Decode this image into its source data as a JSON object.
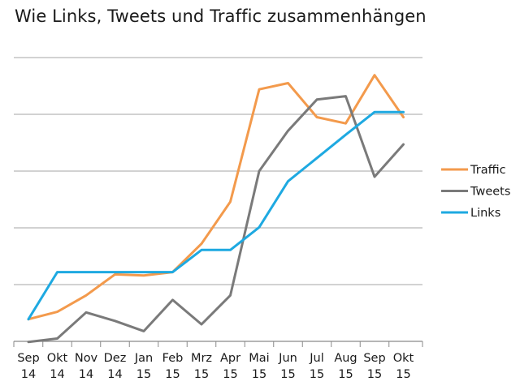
{
  "chart_data": {
    "type": "line",
    "title": "Wie Links, Tweets und Traffic zusammenhängen",
    "categories": [
      [
        "Sep",
        "14"
      ],
      [
        "Okt",
        "14"
      ],
      [
        "Nov",
        "14"
      ],
      [
        "Dez",
        "14"
      ],
      [
        "Jan",
        "15"
      ],
      [
        "Feb",
        "15"
      ],
      [
        "Mrz",
        "15"
      ],
      [
        "Apr",
        "15"
      ],
      [
        "Mai",
        "15"
      ],
      [
        "Jun",
        "15"
      ],
      [
        "Jul",
        "15"
      ],
      [
        "Aug",
        "15"
      ],
      [
        "Sep",
        "15"
      ],
      [
        "Okt",
        "15"
      ]
    ],
    "series": [
      {
        "name": "Traffic",
        "color": "#f39a4c",
        "values": [
          39,
          52,
          81,
          118,
          116,
          122,
          172,
          246,
          444,
          455,
          395,
          384,
          469,
          395
        ]
      },
      {
        "name": "Tweets",
        "color": "#7a7a7a",
        "values": [
          -1,
          5,
          51,
          36,
          18,
          73,
          30,
          81,
          300,
          371,
          426,
          432,
          290,
          347
        ]
      },
      {
        "name": "Links",
        "color": "#1ea9e1",
        "values": [
          39,
          122,
          122,
          122,
          122,
          122,
          161,
          161,
          201,
          282,
          323,
          364,
          404,
          404
        ]
      }
    ],
    "ylim": [
      0,
      500
    ],
    "y_gridlines": [
      0,
      100,
      200,
      300,
      400,
      500
    ],
    "y_tick_labels": false,
    "grid": true,
    "legend": "right"
  }
}
